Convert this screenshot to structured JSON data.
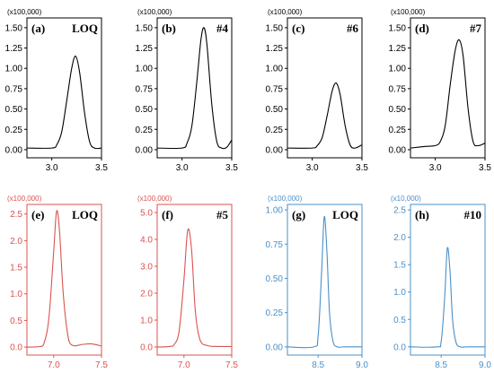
{
  "chart_data": [
    {
      "type": "line",
      "letter": "(a)",
      "tag": "LOQ",
      "multiplier": "(x100,000)",
      "color": "#000000",
      "xlim": [
        2.75,
        3.5
      ],
      "ylim": [
        -0.1,
        1.62
      ],
      "xticks": [
        3.0,
        3.5
      ],
      "xtick_labels": [
        "3.0",
        "3.5"
      ],
      "yticks": [
        0,
        0.25,
        0.5,
        0.75,
        1.0,
        1.25,
        1.5
      ],
      "ytick_labels": [
        "0.00",
        "0.25",
        "0.50",
        "0.75",
        "1.00",
        "1.25",
        "1.50"
      ],
      "x": [
        2.75,
        3.0,
        3.05,
        3.1,
        3.15,
        3.2,
        3.24,
        3.28,
        3.33,
        3.38,
        3.43,
        3.5
      ],
      "y": [
        0.02,
        0.02,
        0.06,
        0.22,
        0.6,
        1.0,
        1.15,
        0.95,
        0.45,
        0.1,
        0.02,
        0.02
      ]
    },
    {
      "type": "line",
      "letter": "(b)",
      "tag": "#4",
      "multiplier": "(x100,000)",
      "color": "#000000",
      "xlim": [
        2.75,
        3.5
      ],
      "ylim": [
        -0.1,
        1.62
      ],
      "xticks": [
        3.0,
        3.5
      ],
      "xtick_labels": [
        "3.0",
        "3.5"
      ],
      "yticks": [
        0,
        0.25,
        0.5,
        0.75,
        1.0,
        1.25,
        1.5
      ],
      "ytick_labels": [
        "0.00",
        "0.25",
        "0.50",
        "0.75",
        "1.00",
        "1.25",
        "1.50"
      ],
      "x": [
        2.75,
        3.0,
        3.05,
        3.1,
        3.15,
        3.19,
        3.22,
        3.25,
        3.3,
        3.35,
        3.4,
        3.45,
        3.5
      ],
      "y": [
        0.02,
        0.02,
        0.08,
        0.3,
        0.85,
        1.35,
        1.5,
        1.3,
        0.55,
        0.1,
        0.02,
        0.03,
        0.12
      ]
    },
    {
      "type": "line",
      "letter": "(c)",
      "tag": "#6",
      "multiplier": "(x100,000)",
      "color": "#000000",
      "xlim": [
        2.75,
        3.5
      ],
      "ylim": [
        -0.1,
        1.62
      ],
      "xticks": [
        3.0,
        3.5
      ],
      "xtick_labels": [
        "3.0",
        "3.5"
      ],
      "yticks": [
        0,
        0.25,
        0.5,
        0.75,
        1.0,
        1.25,
        1.5
      ],
      "ytick_labels": [
        "0.00",
        "0.25",
        "0.50",
        "0.75",
        "1.00",
        "1.25",
        "1.50"
      ],
      "x": [
        2.75,
        3.0,
        3.05,
        3.1,
        3.15,
        3.2,
        3.24,
        3.28,
        3.33,
        3.38,
        3.43,
        3.5
      ],
      "y": [
        0.02,
        0.02,
        0.05,
        0.15,
        0.42,
        0.72,
        0.82,
        0.68,
        0.3,
        0.06,
        0.02,
        0.06
      ]
    },
    {
      "type": "line",
      "letter": "(d)",
      "tag": "#7",
      "multiplier": "(x100,000)",
      "color": "#000000",
      "xlim": [
        2.75,
        3.5
      ],
      "ylim": [
        -0.1,
        1.62
      ],
      "xticks": [
        3.0,
        3.5
      ],
      "xtick_labels": [
        "3.0",
        "3.5"
      ],
      "yticks": [
        0,
        0.25,
        0.5,
        0.75,
        1.0,
        1.25,
        1.5
      ],
      "ytick_labels": [
        "0.00",
        "0.25",
        "0.50",
        "0.75",
        "1.00",
        "1.25",
        "1.50"
      ],
      "x": [
        2.75,
        2.9,
        3.0,
        3.05,
        3.1,
        3.15,
        3.2,
        3.24,
        3.28,
        3.33,
        3.38,
        3.43,
        3.5
      ],
      "y": [
        0.02,
        0.04,
        0.05,
        0.1,
        0.3,
        0.8,
        1.22,
        1.35,
        1.15,
        0.5,
        0.1,
        0.05,
        0.08
      ]
    },
    {
      "type": "line",
      "letter": "(e)",
      "tag": "LOQ",
      "multiplier": "(x100,000)",
      "color": "#d9534f",
      "xlim": [
        6.72,
        7.5
      ],
      "ylim": [
        -0.15,
        2.68
      ],
      "xticks": [
        7.0,
        7.5
      ],
      "xtick_labels": [
        "7.0",
        "7.5"
      ],
      "yticks": [
        0,
        0.5,
        1.0,
        1.5,
        2.0,
        2.5
      ],
      "ytick_labels": [
        "0.0",
        "0.5",
        "1.0",
        "1.5",
        "2.0",
        "2.5"
      ],
      "x": [
        6.72,
        6.85,
        6.9,
        6.95,
        7.0,
        7.03,
        7.06,
        7.1,
        7.15,
        7.2,
        7.3,
        7.4,
        7.5
      ],
      "y": [
        0.0,
        0.01,
        0.08,
        0.55,
        1.8,
        2.55,
        2.2,
        1.0,
        0.2,
        0.03,
        0.05,
        0.06,
        0.02
      ]
    },
    {
      "type": "line",
      "letter": "(f)",
      "tag": "#5",
      "multiplier": "(x100,000)",
      "color": "#d9534f",
      "xlim": [
        6.72,
        7.5
      ],
      "ylim": [
        -0.3,
        5.3
      ],
      "xticks": [
        7.0,
        7.5
      ],
      "xtick_labels": [
        "7.0",
        "7.5"
      ],
      "yticks": [
        0,
        1,
        2,
        3,
        4,
        5
      ],
      "ytick_labels": [
        "0.0",
        "1.0",
        "2.0",
        "3.0",
        "4.0",
        "5.0"
      ],
      "x": [
        6.72,
        6.85,
        6.9,
        6.95,
        7.0,
        7.04,
        7.08,
        7.12,
        7.17,
        7.25,
        7.35,
        7.5
      ],
      "y": [
        0.0,
        0.02,
        0.1,
        0.6,
        2.5,
        4.35,
        3.6,
        1.3,
        0.25,
        0.05,
        0.02,
        0.02
      ]
    },
    {
      "type": "line",
      "letter": "(g)",
      "tag": "LOQ",
      "multiplier": "(x100,000)",
      "color": "#4a90c8",
      "xlim": [
        8.15,
        9.0
      ],
      "ylim": [
        -0.06,
        1.04
      ],
      "xticks": [
        8.5,
        9.0
      ],
      "xtick_labels": [
        "8.5",
        "9.0"
      ],
      "yticks": [
        0,
        0.25,
        0.5,
        0.75,
        1.0
      ],
      "ytick_labels": [
        "0.00",
        "0.25",
        "0.50",
        "0.75",
        "1.00"
      ],
      "x": [
        8.15,
        8.45,
        8.5,
        8.54,
        8.57,
        8.6,
        8.63,
        8.67,
        8.72,
        8.8,
        9.0
      ],
      "y": [
        0.0,
        0.0,
        0.08,
        0.55,
        0.95,
        0.7,
        0.25,
        0.04,
        0.0,
        0.0,
        0.0
      ]
    },
    {
      "type": "line",
      "letter": "(h)",
      "tag": "#10",
      "multiplier": "(x10,000)",
      "color": "#4a90c8",
      "xlim": [
        8.15,
        9.0
      ],
      "ylim": [
        -0.15,
        2.6
      ],
      "xticks": [
        8.5,
        9.0
      ],
      "xtick_labels": [
        "8.5",
        "9.0"
      ],
      "yticks": [
        0,
        0.5,
        1.0,
        1.5,
        2.0,
        2.5
      ],
      "ytick_labels": [
        "0.0",
        "0.5",
        "1.0",
        "1.5",
        "2.0",
        "2.5"
      ],
      "x": [
        8.15,
        8.45,
        8.5,
        8.54,
        8.57,
        8.6,
        8.63,
        8.67,
        8.72,
        8.8,
        9.0
      ],
      "y": [
        0.0,
        0.0,
        0.1,
        0.9,
        1.8,
        1.4,
        0.5,
        0.08,
        0.0,
        0.0,
        0.0
      ]
    }
  ]
}
